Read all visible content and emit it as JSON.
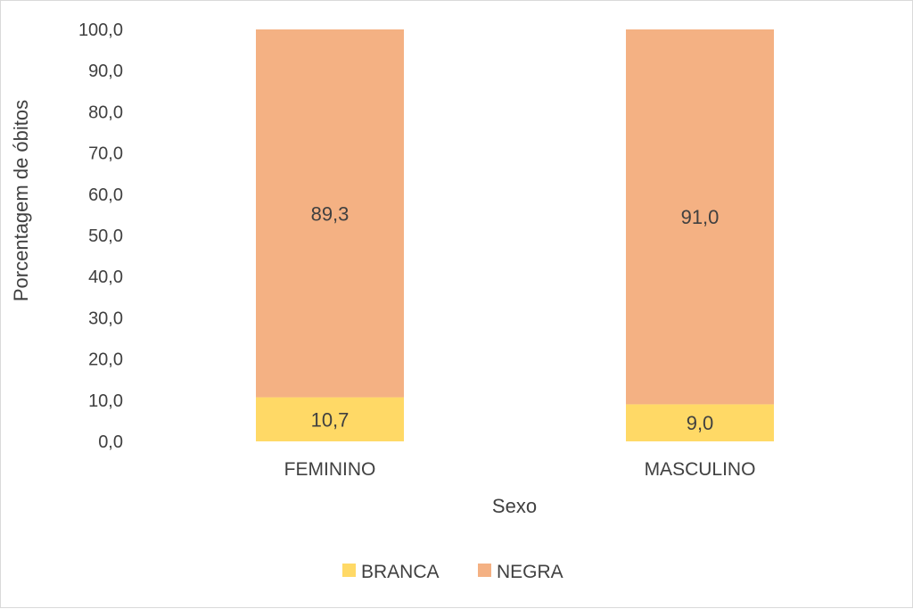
{
  "chart_data": {
    "type": "bar",
    "stacked": true,
    "categories": [
      "FEMININO",
      "MASCULINO"
    ],
    "series": [
      {
        "name": "BRANCA",
        "values": [
          10.7,
          9.0
        ],
        "labels": [
          "10,7",
          "9,0"
        ],
        "color": "#FFD966"
      },
      {
        "name": "NEGRA",
        "values": [
          89.3,
          91.0
        ],
        "labels": [
          "89,3",
          "91,0"
        ],
        "color": "#F4B183"
      }
    ],
    "xlabel": "Sexo",
    "ylabel": "Porcentagem de óbitos",
    "ylim": [
      0,
      100
    ],
    "yticks": [
      0,
      10,
      20,
      30,
      40,
      50,
      60,
      70,
      80,
      90,
      100
    ],
    "ytick_labels": [
      "0,0",
      "10,0",
      "20,0",
      "30,0",
      "40,0",
      "50,0",
      "60,0",
      "70,0",
      "80,0",
      "90,0",
      "100,0"
    ],
    "grid": false,
    "legend": "bottom"
  }
}
